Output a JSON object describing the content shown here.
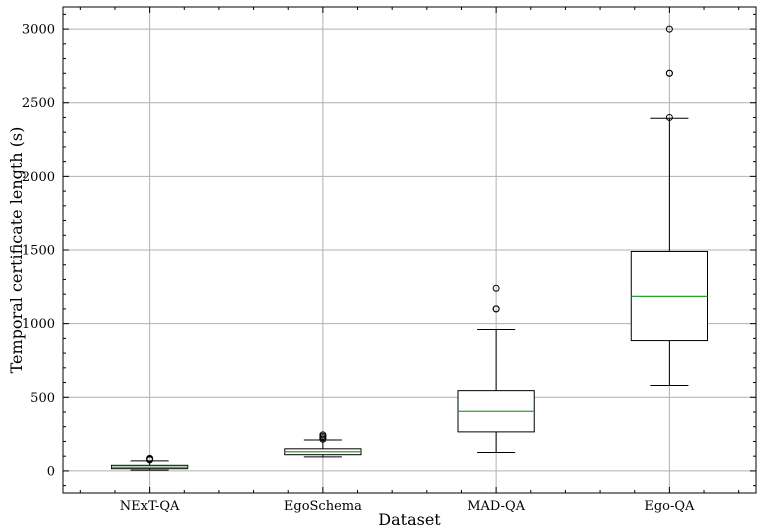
{
  "chart_data": {
    "type": "box",
    "title": "",
    "xlabel": "Dataset",
    "ylabel": "Temporal certificate length (s)",
    "ylim": [
      -150,
      3150
    ],
    "yticks": [
      0,
      500,
      1000,
      1500,
      2000,
      2500,
      3000
    ],
    "ytick_labels": [
      "0",
      "500",
      "1000",
      "1500",
      "2000",
      "2500",
      "3000"
    ],
    "grid": true,
    "categories": [
      "NExT-QA",
      "EgoSchema",
      "MAD-QA",
      "Ego-QA"
    ],
    "boxes": [
      {
        "name": "NExT-QA",
        "whisker_low": 5,
        "q1": 15,
        "median": 25,
        "q3": 38,
        "whisker_high": 68,
        "outliers": [
          75,
          80,
          85
        ]
      },
      {
        "name": "EgoSchema",
        "whisker_low": 95,
        "q1": 110,
        "median": 130,
        "q3": 150,
        "whisker_high": 210,
        "outliers": [
          215,
          225,
          235,
          245
        ]
      },
      {
        "name": "MAD-QA",
        "whisker_low": 125,
        "q1": 265,
        "median": 405,
        "q3": 545,
        "whisker_high": 960,
        "outliers": [
          1100,
          1100,
          1240
        ]
      },
      {
        "name": "Ego-QA",
        "whisker_low": 580,
        "q1": 885,
        "median": 1185,
        "q3": 1490,
        "whisker_high": 2395,
        "outliers": [
          2400,
          2700,
          2700,
          3000
        ]
      }
    ],
    "colors": {
      "box": "#000000",
      "median": "#2ca02c",
      "grid": "#b0b0b0",
      "spine": "#000000"
    }
  }
}
